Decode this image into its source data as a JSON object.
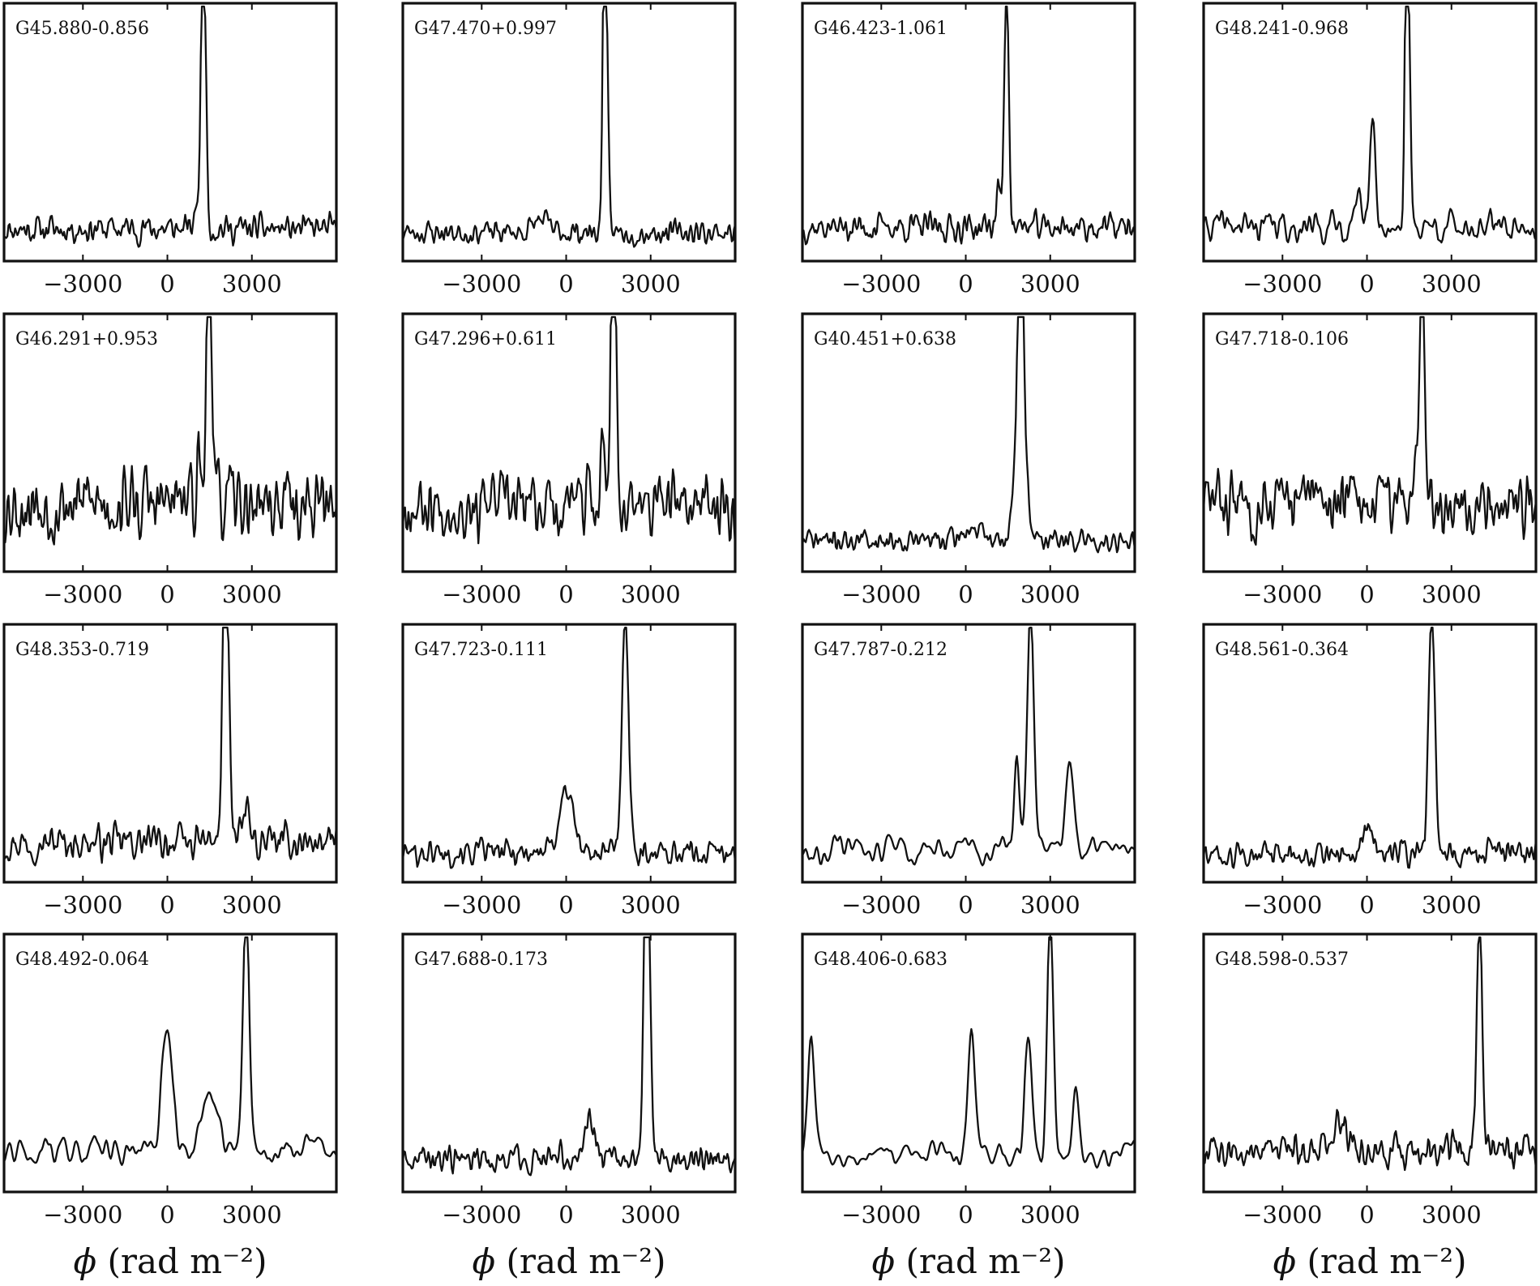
{
  "figure": {
    "ncols": 4,
    "nrows": 4,
    "xlabel": "ϕ (rad m⁻²)",
    "ink_color": "#111111",
    "background": "#ffffff"
  },
  "chart_data": [
    {
      "type": "line",
      "title": "G45.880-0.856",
      "xlim": [
        -5800,
        6000
      ],
      "xticks": [
        -3000,
        0,
        3000
      ],
      "tick_labels": [
        "−3000",
        "0",
        "3000"
      ],
      "yaxis": "unlabeled",
      "peak": {
        "x": 1300,
        "width": 220,
        "shape": "split"
      },
      "sidelobes": [
        {
          "x": 1050,
          "height": 0.12,
          "width": 150
        }
      ],
      "noise": 0.07,
      "baseline": 0.05,
      "smoothness": 1,
      "seed": 11
    },
    {
      "type": "line",
      "title": "G47.470+0.997",
      "xlim": [
        -5800,
        6000
      ],
      "xticks": [
        -3000,
        0,
        3000
      ],
      "tick_labels": [
        "−3000",
        "0",
        "3000"
      ],
      "yaxis": "unlabeled",
      "peak": {
        "x": 1400,
        "width": 220,
        "shape": "split"
      },
      "sidelobes": [
        {
          "x": -900,
          "height": 0.05,
          "width": 500
        }
      ],
      "noise": 0.06,
      "baseline": 0.05,
      "smoothness": 1,
      "seed": 23
    },
    {
      "type": "line",
      "title": "G46.423-1.061",
      "xlim": [
        -5800,
        6000
      ],
      "xticks": [
        -3000,
        0,
        3000
      ],
      "tick_labels": [
        "−3000",
        "0",
        "3000"
      ],
      "yaxis": "unlabeled",
      "peak": {
        "x": 1450,
        "width": 230,
        "shape": "single"
      },
      "sidelobes": [
        {
          "x": 1150,
          "height": 0.18,
          "width": 130
        }
      ],
      "noise": 0.07,
      "baseline": 0.06,
      "smoothness": 1,
      "seed": 37
    },
    {
      "type": "line",
      "title": "G48.241-0.968",
      "xlim": [
        -5800,
        6000
      ],
      "xticks": [
        -3000,
        0,
        3000
      ],
      "tick_labels": [
        "−3000",
        "0",
        "3000"
      ],
      "yaxis": "unlabeled",
      "peak": {
        "x": 1450,
        "width": 220,
        "shape": "split"
      },
      "sidelobes": [
        {
          "x": 200,
          "height": 0.45,
          "width": 180
        },
        {
          "x": -300,
          "height": 0.2,
          "width": 160
        }
      ],
      "noise": 0.07,
      "baseline": 0.06,
      "smoothness": 2,
      "seed": 41
    },
    {
      "type": "line",
      "title": "G46.291+0.953",
      "xlim": [
        -5800,
        6000
      ],
      "xticks": [
        -3000,
        0,
        3000
      ],
      "tick_labels": [
        "−3000",
        "0",
        "3000"
      ],
      "yaxis": "unlabeled",
      "peak": {
        "x": 1500,
        "width": 230,
        "shape": "split"
      },
      "sidelobes": [
        {
          "x": 1100,
          "height": 0.2,
          "width": 150
        }
      ],
      "noise": 0.17,
      "baseline": 0.1,
      "smoothness": 1,
      "seed": 53
    },
    {
      "type": "line",
      "title": "G47.296+0.611",
      "xlim": [
        -5800,
        6000
      ],
      "xticks": [
        -3000,
        0,
        3000
      ],
      "tick_labels": [
        "−3000",
        "0",
        "3000"
      ],
      "yaxis": "unlabeled",
      "peak": {
        "x": 1700,
        "width": 250,
        "shape": "split"
      },
      "sidelobes": [
        {
          "x": 1300,
          "height": 0.25,
          "width": 150
        }
      ],
      "noise": 0.16,
      "baseline": 0.1,
      "smoothness": 1,
      "seed": 67
    },
    {
      "type": "line",
      "title": "G40.451+0.638",
      "xlim": [
        -5800,
        6000
      ],
      "xticks": [
        -3000,
        0,
        3000
      ],
      "tick_labels": [
        "−3000",
        "0",
        "3000"
      ],
      "yaxis": "unlabeled",
      "peak": {
        "x": 1950,
        "width": 330,
        "shape": "shoulder"
      },
      "sidelobes": [
        {
          "x": 200,
          "height": 0.05,
          "width": 500
        }
      ],
      "noise": 0.05,
      "baseline": 0.07,
      "smoothness": 1,
      "seed": 71
    },
    {
      "type": "line",
      "title": "G47.718-0.106",
      "xlim": [
        -5800,
        6000
      ],
      "xticks": [
        -3000,
        0,
        3000
      ],
      "tick_labels": [
        "−3000",
        "0",
        "3000"
      ],
      "yaxis": "unlabeled",
      "peak": {
        "x": 1950,
        "width": 260,
        "shape": "single"
      },
      "sidelobes": [
        {
          "x": 1700,
          "height": 0.2,
          "width": 140
        }
      ],
      "noise": 0.15,
      "baseline": 0.1,
      "smoothness": 1,
      "seed": 83
    },
    {
      "type": "line",
      "title": "G48.353-0.719",
      "xlim": [
        -5800,
        6000
      ],
      "xticks": [
        -3000,
        0,
        3000
      ],
      "tick_labels": [
        "−3000",
        "0",
        "3000"
      ],
      "yaxis": "unlabeled",
      "peak": {
        "x": 2100,
        "width": 300,
        "shape": "split"
      },
      "sidelobes": [
        {
          "x": 2800,
          "height": 0.15,
          "width": 200
        }
      ],
      "noise": 0.09,
      "baseline": 0.06,
      "smoothness": 1,
      "seed": 97
    },
    {
      "type": "line",
      "title": "G47.723-0.111",
      "xlim": [
        -5800,
        6000
      ],
      "xticks": [
        -3000,
        0,
        3000
      ],
      "tick_labels": [
        "−3000",
        "0",
        "3000"
      ],
      "yaxis": "unlabeled",
      "peak": {
        "x": 2100,
        "width": 330,
        "shape": "single"
      },
      "sidelobes": [
        {
          "x": 0,
          "height": 0.25,
          "width": 500
        }
      ],
      "noise": 0.06,
      "baseline": 0.05,
      "smoothness": 1,
      "seed": 101
    },
    {
      "type": "line",
      "title": "G47.787-0.212",
      "xlim": [
        -5800,
        6000
      ],
      "xticks": [
        -3000,
        0,
        3000
      ],
      "tick_labels": [
        "−3000",
        "0",
        "3000"
      ],
      "yaxis": "unlabeled",
      "peak": {
        "x": 2300,
        "width": 320,
        "shape": "single"
      },
      "sidelobes": [
        {
          "x": 1800,
          "height": 0.35,
          "width": 180
        },
        {
          "x": 3700,
          "height": 0.35,
          "width": 300
        }
      ],
      "noise": 0.06,
      "baseline": 0.06,
      "smoothness": 5,
      "seed": 113
    },
    {
      "type": "line",
      "title": "G48.561-0.364",
      "xlim": [
        -5800,
        6000
      ],
      "xticks": [
        -3000,
        0,
        3000
      ],
      "tick_labels": [
        "−3000",
        "0",
        "3000"
      ],
      "yaxis": "unlabeled",
      "peak": {
        "x": 2300,
        "width": 320,
        "shape": "single"
      },
      "sidelobes": [
        {
          "x": 0,
          "height": 0.12,
          "width": 300
        }
      ],
      "noise": 0.06,
      "baseline": 0.05,
      "smoothness": 1,
      "seed": 127
    },
    {
      "type": "line",
      "title": "G48.492-0.064",
      "xlim": [
        -5800,
        6000
      ],
      "xticks": [
        -3000,
        0,
        3000
      ],
      "tick_labels": [
        "−3000",
        "0",
        "3000"
      ],
      "yaxis": "unlabeled",
      "peak": {
        "x": 2800,
        "width": 330,
        "shape": "single"
      },
      "sidelobes": [
        {
          "x": 0,
          "height": 0.48,
          "width": 380
        },
        {
          "x": 1500,
          "height": 0.2,
          "width": 600
        }
      ],
      "noise": 0.06,
      "baseline": 0.1,
      "smoothness": 5,
      "seed": 131
    },
    {
      "type": "line",
      "title": "G47.688-0.173",
      "xlim": [
        -5800,
        6000
      ],
      "xticks": [
        -3000,
        0,
        3000
      ],
      "tick_labels": [
        "−3000",
        "0",
        "3000"
      ],
      "yaxis": "unlabeled",
      "peak": {
        "x": 2900,
        "width": 300,
        "shape": "split"
      },
      "sidelobes": [
        {
          "x": 800,
          "height": 0.15,
          "width": 400
        }
      ],
      "noise": 0.07,
      "baseline": 0.06,
      "smoothness": 1,
      "seed": 149
    },
    {
      "type": "line",
      "title": "G48.406-0.683",
      "xlim": [
        -5800,
        6000
      ],
      "xticks": [
        -3000,
        0,
        3000
      ],
      "tick_labels": [
        "−3000",
        "0",
        "3000"
      ],
      "yaxis": "unlabeled",
      "peak": {
        "x": 3000,
        "width": 300,
        "shape": "single"
      },
      "sidelobes": [
        {
          "x": 200,
          "height": 0.5,
          "width": 250
        },
        {
          "x": 2200,
          "height": 0.45,
          "width": 250
        },
        {
          "x": -5500,
          "height": 0.5,
          "width": 250
        },
        {
          "x": 3900,
          "height": 0.3,
          "width": 200
        }
      ],
      "noise": 0.06,
      "baseline": 0.08,
      "smoothness": 5,
      "seed": 157
    },
    {
      "type": "line",
      "title": "G48.598-0.537",
      "xlim": [
        -5800,
        6000
      ],
      "xticks": [
        -3000,
        0,
        3000
      ],
      "tick_labels": [
        "−3000",
        "0",
        "3000"
      ],
      "yaxis": "unlabeled",
      "peak": {
        "x": 4000,
        "width": 260,
        "shape": "single"
      },
      "sidelobes": [
        {
          "x": -1000,
          "height": 0.1,
          "width": 700
        }
      ],
      "noise": 0.08,
      "baseline": 0.08,
      "smoothness": 1,
      "seed": 163
    }
  ]
}
